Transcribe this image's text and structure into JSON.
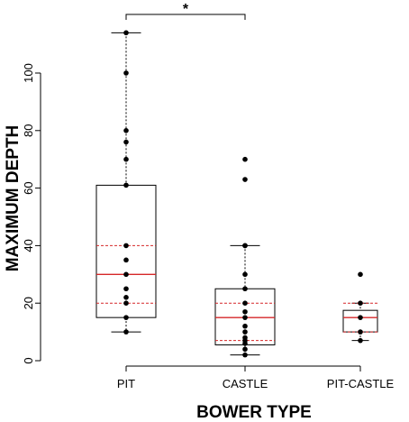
{
  "chart_data": {
    "type": "box",
    "xlabel": "BOWER TYPE",
    "ylabel": "MAXIMUM DEPTH",
    "ylim": [
      0,
      115
    ],
    "yticks": [
      0,
      20,
      40,
      60,
      80,
      100
    ],
    "categories": [
      "PIT",
      "CASTLE",
      "PIT-CASTLE"
    ],
    "significance": {
      "label": "*",
      "between": [
        "PIT",
        "CASTLE"
      ]
    },
    "boxes": [
      {
        "category": "PIT",
        "min": 10,
        "q1": 15,
        "median": 30,
        "q3": 61,
        "max": 114,
        "mean": 30,
        "ci": [
          20,
          40
        ],
        "points": [
          114,
          100,
          80,
          76,
          70,
          61,
          40,
          35,
          30,
          25,
          22,
          20,
          15,
          10
        ]
      },
      {
        "category": "CASTLE",
        "min": 2,
        "q1": 5.5,
        "median": 15,
        "q3": 25,
        "max": 40,
        "mean": 15,
        "ci": [
          7,
          20
        ],
        "points": [
          70,
          63,
          40,
          40,
          30,
          25,
          20,
          17,
          15,
          12,
          10,
          8,
          7,
          6,
          4,
          2
        ]
      },
      {
        "category": "PIT-CASTLE",
        "min": 7,
        "q1": 10,
        "median": 15,
        "q3": 17.5,
        "max": 20,
        "mean": 15,
        "ci": [
          10,
          20
        ],
        "points": [
          30,
          20,
          15,
          10,
          7
        ]
      }
    ],
    "colors": {
      "box": "#000000",
      "median": "#d62728",
      "mean_ci": "#d62728",
      "points": "#000000"
    }
  }
}
